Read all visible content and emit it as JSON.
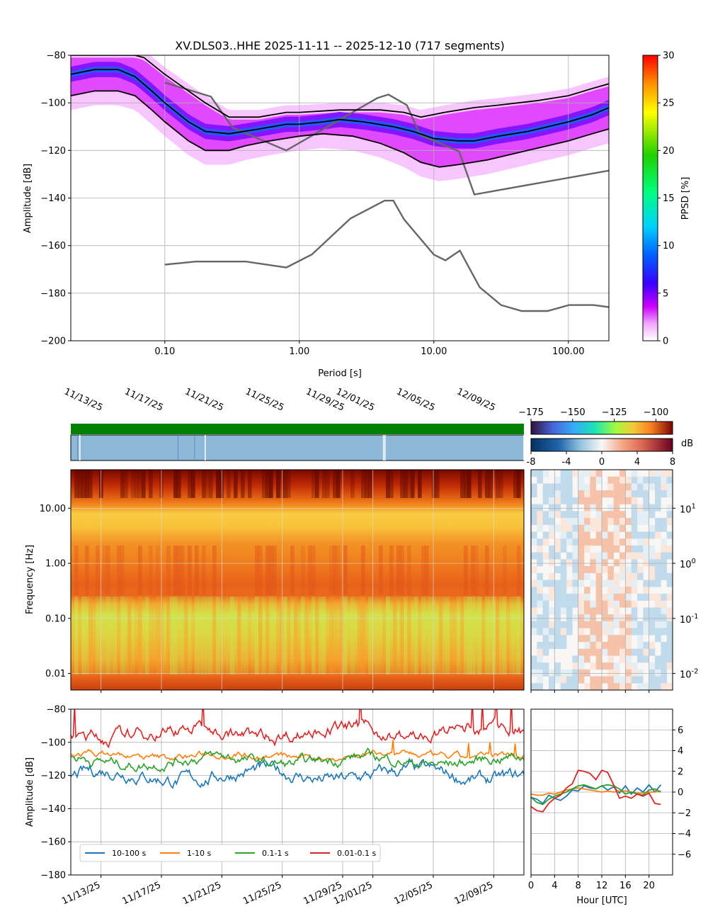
{
  "figure_title": "XV.DLS03..HHE   2025-11-11 -- 2025-12-10  (717 segments)",
  "chart_data": [
    {
      "id": "ppsd",
      "type": "heatmap",
      "title": "XV.DLS03..HHE   2025-11-11 -- 2025-12-10  (717 segments)",
      "xlabel": "Period [s]",
      "ylabel": "Amplitude [dB]",
      "xscale": "log",
      "xlim": [
        0.02,
        200
      ],
      "ylim": [
        -200,
        -80
      ],
      "xticks": [
        {
          "v": 0.1,
          "label": "0.10"
        },
        {
          "v": 1,
          "label": "1.00"
        },
        {
          "v": 10,
          "label": "10.00"
        },
        {
          "v": 100,
          "label": "100.00"
        }
      ],
      "yticks": [
        {
          "v": -80,
          "label": "−80"
        },
        {
          "v": -100,
          "label": "−100"
        },
        {
          "v": -120,
          "label": "−120"
        },
        {
          "v": -140,
          "label": "−140"
        },
        {
          "v": -160,
          "label": "−160"
        },
        {
          "v": -180,
          "label": "−180"
        },
        {
          "v": -200,
          "label": "−200"
        }
      ],
      "grid": true,
      "colorbar": {
        "label": "PPSD [%]",
        "range": [
          0,
          30
        ],
        "ticks": [
          {
            "v": 0,
            "label": "0"
          },
          {
            "v": 5,
            "label": "5"
          },
          {
            "v": 10,
            "label": "10"
          },
          {
            "v": 15,
            "label": "15"
          },
          {
            "v": 20,
            "label": "20"
          },
          {
            "v": 25,
            "label": "25"
          },
          {
            "v": 30,
            "label": "30"
          }
        ]
      },
      "mode_curve": [
        [
          0.02,
          -88
        ],
        [
          0.03,
          -86
        ],
        [
          0.045,
          -86
        ],
        [
          0.06,
          -89
        ],
        [
          0.08,
          -95
        ],
        [
          0.1,
          -100
        ],
        [
          0.15,
          -108
        ],
        [
          0.2,
          -112
        ],
        [
          0.3,
          -113
        ],
        [
          0.5,
          -111
        ],
        [
          0.8,
          -109
        ],
        [
          1.0,
          -109
        ],
        [
          1.5,
          -108
        ],
        [
          2.0,
          -107
        ],
        [
          3.0,
          -108
        ],
        [
          5.0,
          -110
        ],
        [
          7.0,
          -112
        ],
        [
          10,
          -115
        ],
        [
          15,
          -116
        ],
        [
          20,
          -116
        ],
        [
          30,
          -114
        ],
        [
          50,
          -112
        ],
        [
          100,
          -108
        ],
        [
          150,
          -105
        ],
        [
          200,
          -102
        ]
      ],
      "p_low_curve": [
        [
          0.02,
          -97
        ],
        [
          0.03,
          -95
        ],
        [
          0.045,
          -95
        ],
        [
          0.06,
          -97
        ],
        [
          0.08,
          -103
        ],
        [
          0.1,
          -108
        ],
        [
          0.15,
          -116
        ],
        [
          0.2,
          -120
        ],
        [
          0.3,
          -120
        ],
        [
          0.4,
          -118
        ],
        [
          0.6,
          -116
        ],
        [
          1.0,
          -114
        ],
        [
          1.5,
          -113
        ],
        [
          2.5,
          -114
        ],
        [
          4.0,
          -117
        ],
        [
          6.0,
          -121
        ],
        [
          8.0,
          -125
        ],
        [
          11,
          -127
        ],
        [
          15,
          -126
        ],
        [
          25,
          -124
        ],
        [
          50,
          -120
        ],
        [
          100,
          -116
        ],
        [
          150,
          -113
        ],
        [
          200,
          -111
        ]
      ],
      "p_high_curve": [
        [
          0.02,
          -80
        ],
        [
          0.06,
          -80
        ],
        [
          0.07,
          -81
        ],
        [
          0.1,
          -88
        ],
        [
          0.2,
          -100
        ],
        [
          0.3,
          -106
        ],
        [
          0.5,
          -106
        ],
        [
          0.8,
          -104
        ],
        [
          1.0,
          -104
        ],
        [
          2.0,
          -103
        ],
        [
          4.0,
          -103
        ],
        [
          6.0,
          -104
        ],
        [
          8.0,
          -106
        ],
        [
          12,
          -104
        ],
        [
          20,
          -102
        ],
        [
          30,
          -101
        ],
        [
          60,
          -99
        ],
        [
          100,
          -97
        ],
        [
          150,
          -94
        ],
        [
          200,
          -92
        ]
      ],
      "model_high_curve": [
        [
          0.1,
          -91.5
        ],
        [
          0.22,
          -97.4
        ],
        [
          0.32,
          -110.5
        ],
        [
          0.8,
          -120
        ],
        [
          3.8,
          -98
        ],
        [
          4.6,
          -96.5
        ],
        [
          6.3,
          -101
        ],
        [
          7.9,
          -113.5
        ],
        [
          15.4,
          -120.4
        ],
        [
          20,
          -138.5
        ],
        [
          354,
          -126
        ]
      ],
      "model_low_curve": [
        [
          0.1,
          -168
        ],
        [
          0.17,
          -166.7
        ],
        [
          0.4,
          -166.7
        ],
        [
          0.8,
          -169.2
        ],
        [
          1.24,
          -163.7
        ],
        [
          2.4,
          -148.6
        ],
        [
          4.3,
          -141.1
        ],
        [
          5.0,
          -141.1
        ],
        [
          6.0,
          -149
        ],
        [
          10,
          -163.8
        ],
        [
          12.2,
          -166.2
        ],
        [
          15.6,
          -162.1
        ],
        [
          21.9,
          -177.5
        ],
        [
          31.6,
          -185
        ],
        [
          45,
          -187.5
        ],
        [
          70,
          -187.5
        ],
        [
          101,
          -185
        ],
        [
          154,
          -185
        ],
        [
          328,
          -187.5
        ]
      ]
    },
    {
      "id": "spectrogram",
      "type": "heatmap",
      "ylabel": "Frequency [Hz]",
      "yscale": "log",
      "ylim": [
        0.005,
        50
      ],
      "date_range": [
        "2025-11-11",
        "2025-12-10"
      ],
      "date_ticks": [
        "11/13/25",
        "11/17/25",
        "11/21/25",
        "11/25/25",
        "11/29/25",
        "12/01/25",
        "12/05/25",
        "12/09/25"
      ],
      "yticks": [
        {
          "v": 0.01,
          "label": "0.01"
        },
        {
          "v": 0.1,
          "label": "0.10"
        },
        {
          "v": 1,
          "label": "1.00"
        },
        {
          "v": 10,
          "label": "10.00"
        }
      ],
      "colorbar": {
        "range": [
          -175,
          -90
        ],
        "ticks": [
          {
            "v": -175,
            "label": "−175"
          },
          {
            "v": -150,
            "label": "−150"
          },
          {
            "v": -125,
            "label": "−125"
          },
          {
            "v": -100,
            "label": "−100"
          }
        ]
      },
      "data_gaps_days": [
        0.6,
        8.9,
        20.7,
        20.8,
        30.0
      ]
    },
    {
      "id": "diurnal",
      "type": "heatmap",
      "yscale": "log",
      "ylim": [
        0.005,
        50
      ],
      "yticks": [
        {
          "v": 0.01,
          "label": "10^{-2}"
        },
        {
          "v": 0.1,
          "label": "10^{-1}"
        },
        {
          "v": 1,
          "label": "10^{0}"
        },
        {
          "v": 10,
          "label": "10^{1}"
        }
      ],
      "colorbar": {
        "label": "dB",
        "range": [
          -8,
          8
        ],
        "ticks": [
          {
            "v": -8,
            "label": "-8"
          },
          {
            "v": -4,
            "label": "-4"
          },
          {
            "v": 0,
            "label": "0"
          },
          {
            "v": 4,
            "label": "4"
          },
          {
            "v": 8,
            "label": "8"
          }
        ]
      }
    },
    {
      "id": "band_timeseries",
      "type": "line",
      "ylabel": "Amplitude [dB]",
      "ylim": [
        -180,
        -80
      ],
      "yticks": [
        {
          "v": -80,
          "label": "−80"
        },
        {
          "v": -100,
          "label": "−100"
        },
        {
          "v": -120,
          "label": "−120"
        },
        {
          "v": -140,
          "label": "−140"
        },
        {
          "v": -160,
          "label": "−160"
        },
        {
          "v": -180,
          "label": "−180"
        }
      ],
      "date_ticks": [
        "11/13/25",
        "11/17/25",
        "11/21/25",
        "11/25/25",
        "11/29/25",
        "12/01/25",
        "12/05/25",
        "12/09/25"
      ],
      "legend": "lower-left",
      "series": [
        {
          "name": "10-100 s",
          "color": "#1f77b4",
          "mean_db": -120
        },
        {
          "name": "1-10 s",
          "color": "#ff7f0e",
          "mean_db": -108
        },
        {
          "name": "0.1-1 s",
          "color": "#2ca02c",
          "mean_db": -111
        },
        {
          "name": "0.01-0.1 s",
          "color": "#d62728",
          "mean_db": -94
        }
      ]
    },
    {
      "id": "band_diurnal",
      "type": "line",
      "xlabel": "Hour [UTC]",
      "xlim": [
        0,
        24
      ],
      "ylim": [
        -8,
        8
      ],
      "xticks": [
        {
          "v": 0,
          "label": "0"
        },
        {
          "v": 4,
          "label": "4"
        },
        {
          "v": 8,
          "label": "8"
        },
        {
          "v": 12,
          "label": "12"
        },
        {
          "v": 16,
          "label": "16"
        },
        {
          "v": 20,
          "label": "20"
        }
      ],
      "yticks": [
        {
          "v": 6,
          "label": "6"
        },
        {
          "v": 4,
          "label": "4"
        },
        {
          "v": 2,
          "label": "2"
        },
        {
          "v": 0,
          "label": "0"
        },
        {
          "v": -2,
          "label": "−2"
        },
        {
          "v": -4,
          "label": "−4"
        },
        {
          "v": -6,
          "label": "−6"
        }
      ],
      "hours": [
        0,
        1,
        2,
        3,
        4,
        5,
        6,
        7,
        8,
        9,
        10,
        11,
        12,
        13,
        14,
        15,
        16,
        17,
        18,
        19,
        20,
        21,
        22
      ],
      "series": [
        {
          "name": "10-100 s",
          "color": "#1f77b4",
          "values": [
            -0.5,
            -0.7,
            -1.1,
            -0.3,
            -0.6,
            -0.8,
            -0.4,
            0.2,
            0.1,
            0.6,
            0.4,
            0.3,
            0.6,
            0.2,
            0.5,
            -0.1,
            0.6,
            -0.2,
            0.4,
            0.0,
            0.7,
            0.0,
            0.7
          ]
        },
        {
          "name": "1-10 s",
          "color": "#ff7f0e",
          "values": [
            -0.2,
            -0.3,
            -0.3,
            -0.1,
            -0.2,
            0.0,
            0.2,
            0.3,
            0.4,
            0.3,
            0.2,
            0.1,
            0.0,
            0.1,
            0.0,
            0.1,
            0.1,
            0.0,
            -0.1,
            -0.1,
            0.0,
            0.0,
            0.1
          ]
        },
        {
          "name": "0.1-1 s",
          "color": "#2ca02c",
          "values": [
            -0.5,
            -1.0,
            -1.2,
            -0.7,
            -0.4,
            -0.2,
            0.0,
            0.3,
            0.6,
            0.7,
            0.5,
            0.3,
            0.6,
            0.7,
            0.6,
            0.3,
            -0.2,
            0.0,
            -0.2,
            -0.3,
            0.2,
            0.3,
            0.0
          ]
        },
        {
          "name": "0.01-0.1 s",
          "color": "#d62728",
          "values": [
            -1.4,
            -1.8,
            -1.9,
            -1.1,
            -0.6,
            -0.3,
            0.4,
            0.8,
            2.1,
            2.0,
            1.8,
            1.2,
            2.1,
            1.9,
            0.7,
            -0.6,
            -0.4,
            -0.6,
            -0.2,
            -0.4,
            -0.1,
            -1.1,
            -1.2
          ]
        }
      ]
    }
  ]
}
